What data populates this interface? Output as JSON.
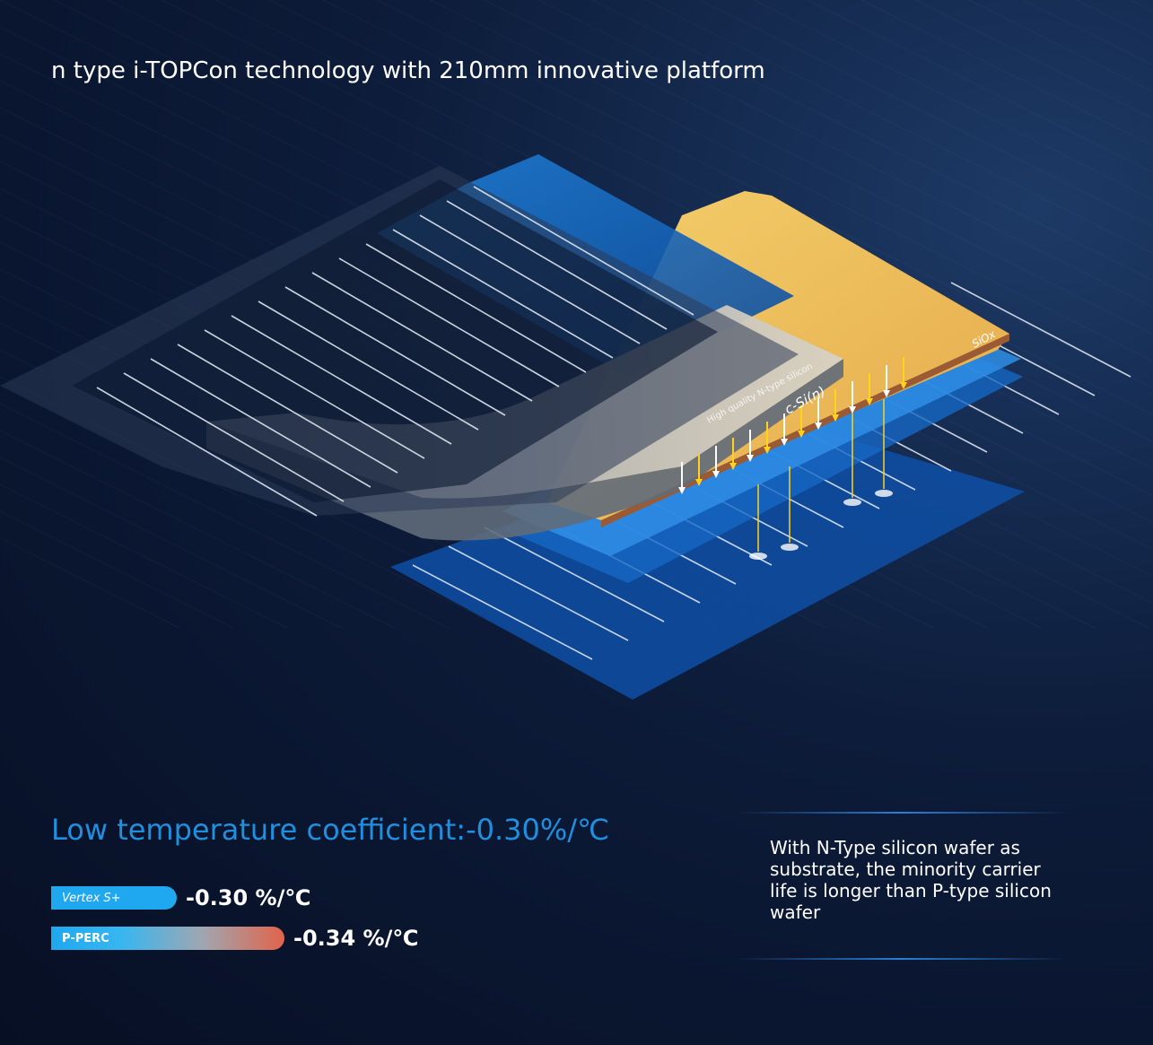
{
  "title": "n type i-TOPCon technology with 210mm innovative platform",
  "illustration": {
    "layer_top": "SiOx",
    "layer_wafer": "c-Si(n)",
    "wafer_caption": "High quality N-type silicon"
  },
  "headline": "Low temperature coefficient:-0.30%/℃",
  "comparison": [
    {
      "label": "Vertex S+",
      "value": "-0.30 %/℃"
    },
    {
      "label": "P-PERC",
      "value": "-0.34 %/℃"
    }
  ],
  "description": "With N-Type silicon wafer as substrate, the minority carrier life is longer than P-type silicon wafer"
}
